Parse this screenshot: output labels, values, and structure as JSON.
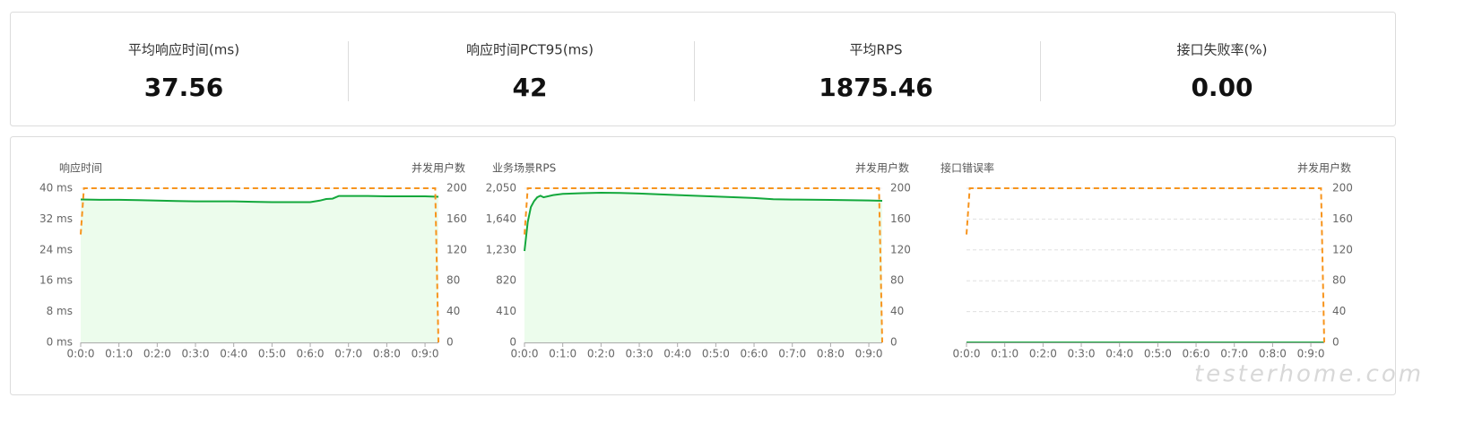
{
  "stats": [
    {
      "label": "平均响应时间(ms)",
      "value": "37.56"
    },
    {
      "label": "响应时间PCT95(ms)",
      "value": "42"
    },
    {
      "label": "平均RPS",
      "value": "1875.46"
    },
    {
      "label": "接口失败率(%)",
      "value": "0.00"
    }
  ],
  "watermark": "testerhome.com",
  "chart_data": [
    {
      "type": "line",
      "y_label": "响应时间",
      "y2_label": "并发用户数",
      "xlim": [
        0,
        561
      ],
      "xticks": [
        {
          "value": 0,
          "label": "0:0:0"
        },
        {
          "value": 60,
          "label": "0:1:0"
        },
        {
          "value": 120,
          "label": "0:2:0"
        },
        {
          "value": 180,
          "label": "0:3:0"
        },
        {
          "value": 240,
          "label": "0:4:0"
        },
        {
          "value": 300,
          "label": "0:5:0"
        },
        {
          "value": 360,
          "label": "0:6:0"
        },
        {
          "value": 420,
          "label": "0:7:0"
        },
        {
          "value": 480,
          "label": "0:8:0"
        },
        {
          "value": 540,
          "label": "0:9:0"
        }
      ],
      "ylim": [
        0,
        40
      ],
      "yticks": [
        {
          "value": 0,
          "label": "0 ms"
        },
        {
          "value": 8,
          "label": "8 ms"
        },
        {
          "value": 16,
          "label": "16 ms"
        },
        {
          "value": 24,
          "label": "24 ms"
        },
        {
          "value": 32,
          "label": "32 ms"
        },
        {
          "value": 40,
          "label": "40 ms"
        }
      ],
      "y2lim": [
        0,
        200
      ],
      "y2ticks": [
        0,
        40,
        80,
        120,
        160,
        200
      ],
      "grid": true,
      "grid_style": "solid",
      "series": [
        {
          "color": "#13a83c",
          "fill": "#ecfcec",
          "x": [
            0,
            30,
            60,
            90,
            120,
            150,
            180,
            210,
            240,
            270,
            300,
            330,
            360,
            375,
            385,
            395,
            405,
            420,
            450,
            480,
            510,
            540,
            561
          ],
          "values": [
            37.1,
            37.0,
            37.0,
            36.9,
            36.8,
            36.7,
            36.6,
            36.6,
            36.6,
            36.5,
            36.4,
            36.4,
            36.4,
            36.8,
            37.2,
            37.3,
            38.0,
            38.0,
            38.0,
            37.9,
            37.9,
            37.9,
            37.8
          ]
        },
        {
          "color": "#f7941d",
          "axis": "y2",
          "dashed": true,
          "x": [
            0,
            5,
            556,
            561
          ],
          "values": [
            140,
            200,
            200,
            0
          ]
        }
      ]
    },
    {
      "type": "line",
      "y_label": "业务场景RPS",
      "y2_label": "并发用户数",
      "xlim": [
        0,
        561
      ],
      "xticks": [
        {
          "value": 0,
          "label": "0:0:0"
        },
        {
          "value": 60,
          "label": "0:1:0"
        },
        {
          "value": 120,
          "label": "0:2:0"
        },
        {
          "value": 180,
          "label": "0:3:0"
        },
        {
          "value": 240,
          "label": "0:4:0"
        },
        {
          "value": 300,
          "label": "0:5:0"
        },
        {
          "value": 360,
          "label": "0:6:0"
        },
        {
          "value": 420,
          "label": "0:7:0"
        },
        {
          "value": 480,
          "label": "0:8:0"
        },
        {
          "value": 540,
          "label": "0:9:0"
        }
      ],
      "ylim": [
        0,
        2050
      ],
      "yticks": [
        0,
        410,
        820,
        {
          "value": 1230,
          "label": "1,230"
        },
        {
          "value": 1640,
          "label": "1,640"
        },
        {
          "value": 2050,
          "label": "2,050"
        }
      ],
      "y2lim": [
        0,
        200
      ],
      "y2ticks": [
        0,
        40,
        80,
        120,
        160,
        200
      ],
      "grid": true,
      "grid_style": "solid",
      "series": [
        {
          "color": "#13a83c",
          "fill": "#ecfcec",
          "x": [
            0,
            5,
            10,
            15,
            20,
            25,
            30,
            45,
            60,
            90,
            120,
            150,
            180,
            240,
            300,
            360,
            390,
            420,
            480,
            540,
            561
          ],
          "values": [
            1216,
            1600,
            1800,
            1880,
            1930,
            1950,
            1930,
            1960,
            1975,
            1985,
            1990,
            1988,
            1980,
            1960,
            1940,
            1920,
            1905,
            1900,
            1895,
            1888,
            1883
          ]
        },
        {
          "color": "#f7941d",
          "axis": "y2",
          "dashed": true,
          "x": [
            0,
            5,
            556,
            561
          ],
          "values": [
            140,
            200,
            200,
            0
          ]
        }
      ]
    },
    {
      "type": "line",
      "y_label": "接口错误率",
      "y2_label": "并发用户数",
      "xlim": [
        0,
        561
      ],
      "xticks": [
        {
          "value": 0,
          "label": "0:0:0"
        },
        {
          "value": 60,
          "label": "0:1:0"
        },
        {
          "value": 120,
          "label": "0:2:0"
        },
        {
          "value": 180,
          "label": "0:3:0"
        },
        {
          "value": 240,
          "label": "0:4:0"
        },
        {
          "value": 300,
          "label": "0:5:0"
        },
        {
          "value": 360,
          "label": "0:6:0"
        },
        {
          "value": 420,
          "label": "0:7:0"
        },
        {
          "value": 480,
          "label": "0:8:0"
        },
        {
          "value": 540,
          "label": "0:9:0"
        }
      ],
      "ylim": [
        0,
        100
      ],
      "y2lim": [
        0,
        200
      ],
      "y2ticks": [
        0,
        40,
        80,
        120,
        160,
        200
      ],
      "grid": true,
      "grid_style": "dashed",
      "series": [
        {
          "color": "#13a83c",
          "x": [
            0,
            561
          ],
          "values": [
            0,
            0
          ]
        },
        {
          "color": "#f7941d",
          "axis": "y2",
          "dashed": true,
          "x": [
            0,
            5,
            556,
            561
          ],
          "values": [
            140,
            200,
            200,
            0
          ]
        }
      ]
    }
  ]
}
